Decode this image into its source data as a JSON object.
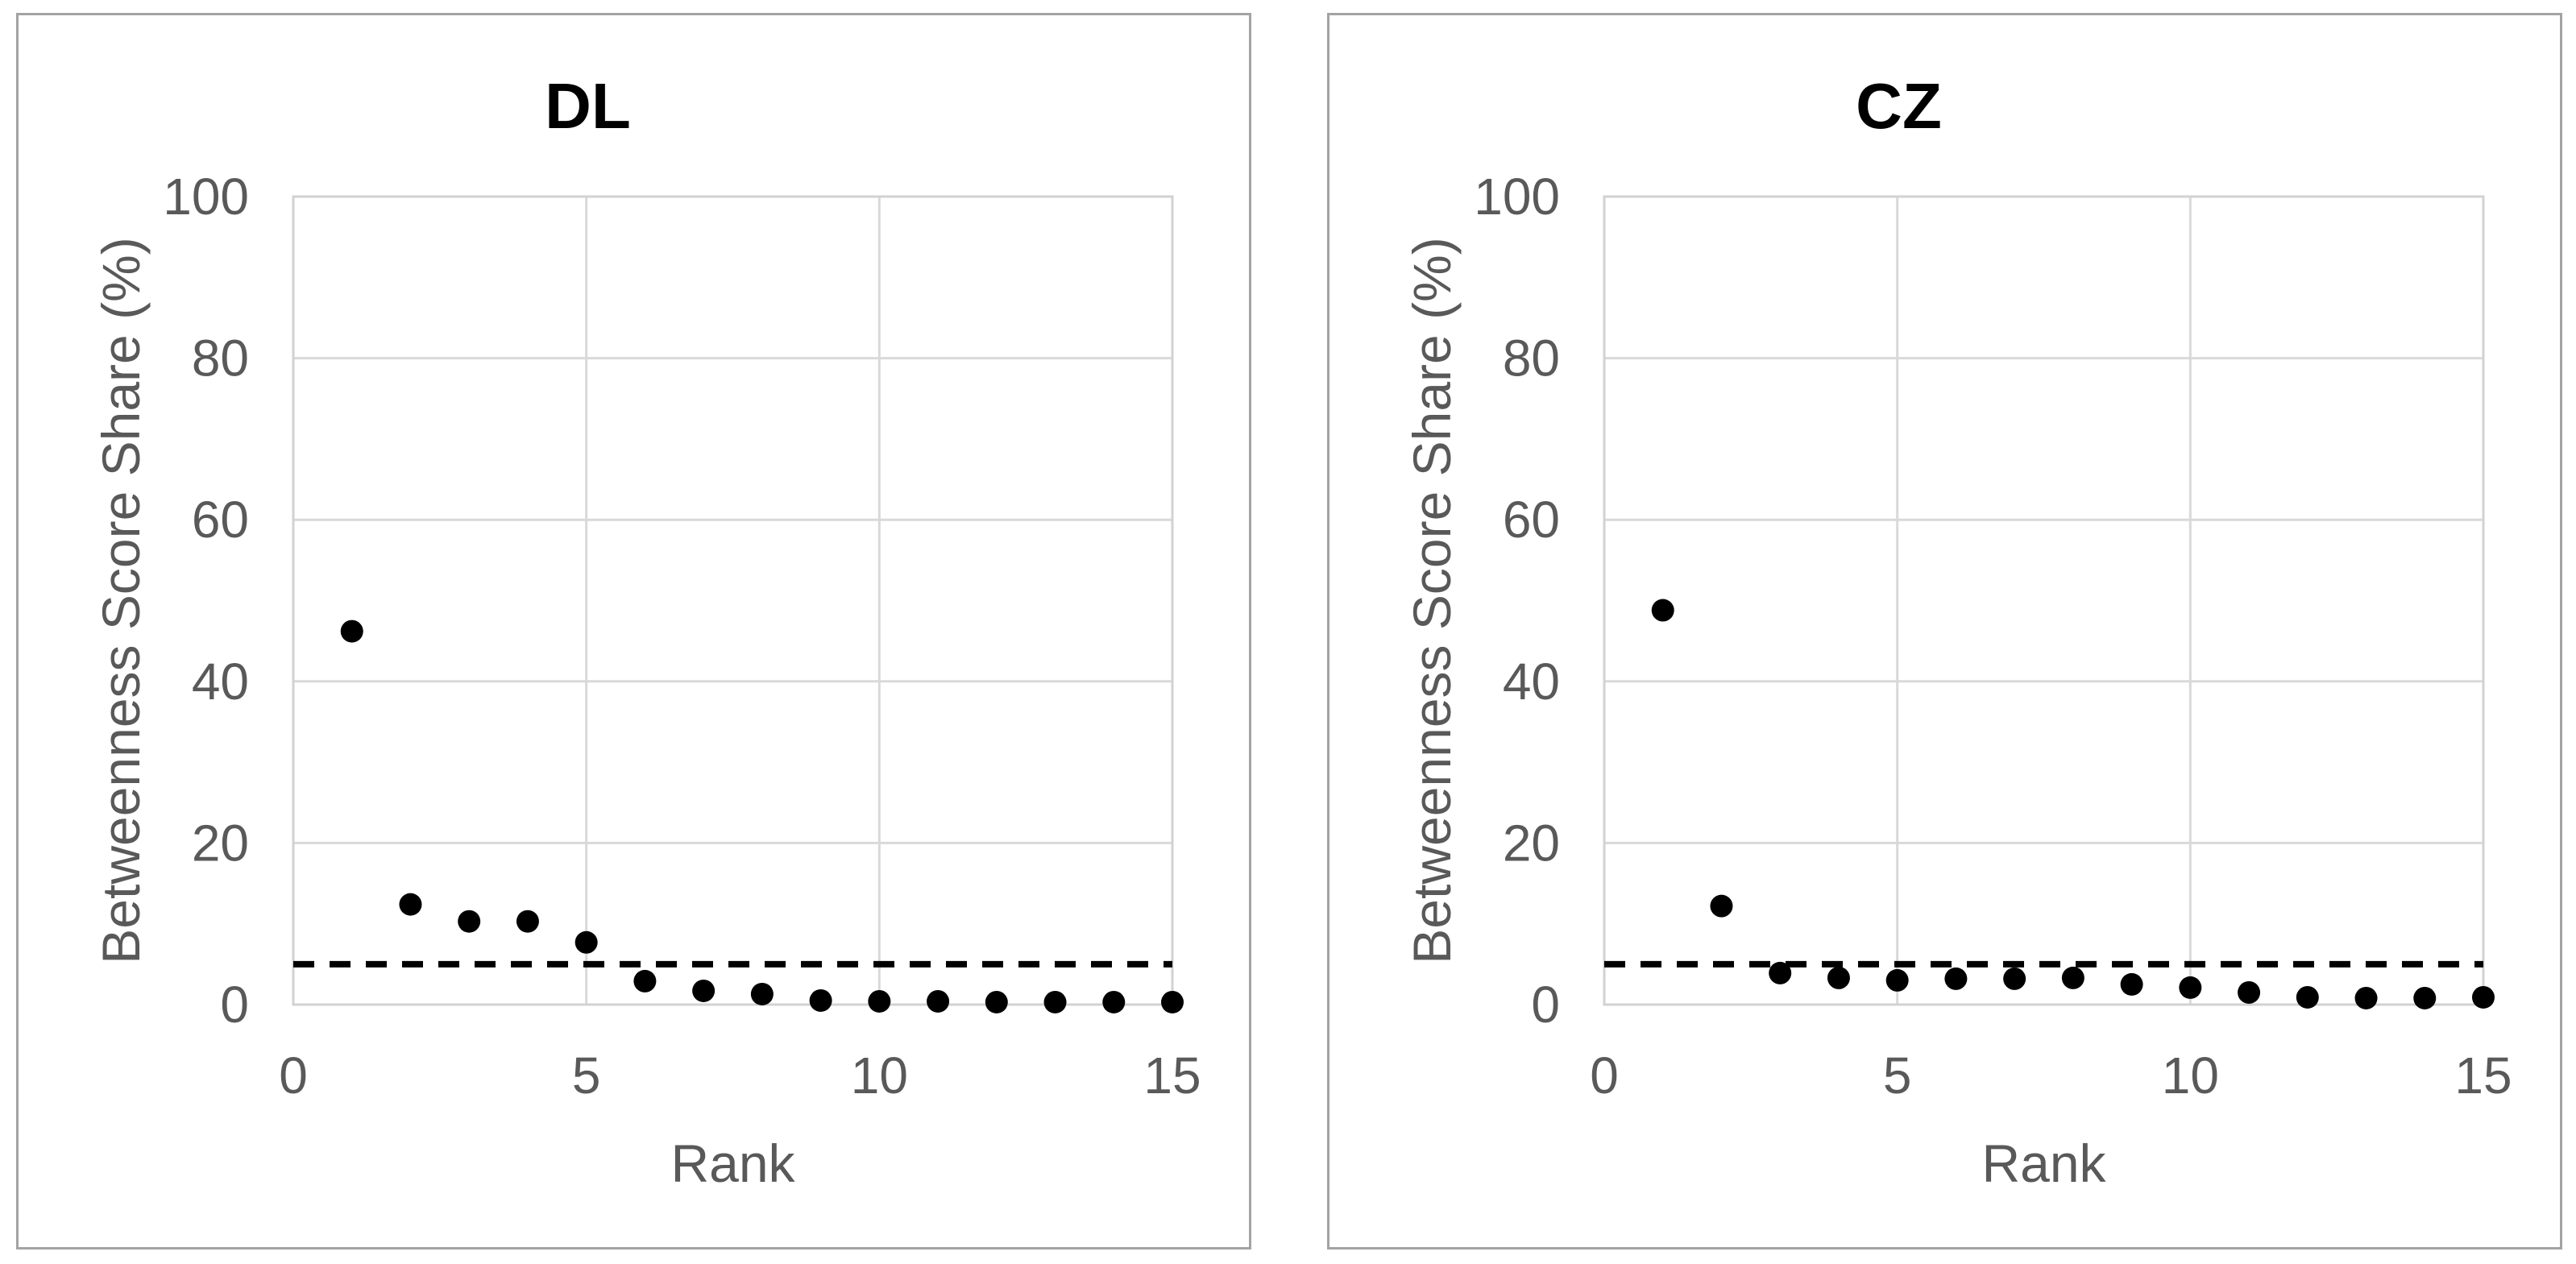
{
  "page": {
    "background_color": "#ffffff",
    "description": "Two side-by-side scatter charts comparing betweenness score share by rank"
  },
  "styles": {
    "title_color": "#000000",
    "axis_text_color": "#595959",
    "gridline_color": "#d9d9d9",
    "plot_border_color": "#d2d2d2",
    "chart_border_color": "#a3a3a3",
    "point_color": "#000000",
    "threshold_color": "#000000"
  },
  "chart_data": [
    {
      "type": "scatter",
      "title": "DL",
      "xlabel": "Rank",
      "ylabel": "Betweenness Score Share (%)",
      "xlim": [
        0,
        15
      ],
      "ylim": [
        0,
        100
      ],
      "x_ticks": [
        0,
        5,
        10,
        15
      ],
      "y_ticks": [
        0,
        20,
        40,
        60,
        80,
        100
      ],
      "grid": true,
      "legend": "none",
      "threshold_line": {
        "y": 5,
        "style": "dashed"
      },
      "x": [
        1,
        2,
        3,
        4,
        5,
        6,
        7,
        8,
        9,
        10,
        11,
        12,
        13,
        14,
        15
      ],
      "y": [
        46.2,
        12.4,
        10.3,
        10.3,
        7.7,
        2.9,
        1.7,
        1.3,
        0.5,
        0.4,
        0.4,
        0.3,
        0.3,
        0.3,
        0.3
      ]
    },
    {
      "type": "scatter",
      "title": "CZ",
      "xlabel": "Rank",
      "ylabel": "Betweenness Score Share (%)",
      "xlim": [
        0,
        15
      ],
      "ylim": [
        0,
        100
      ],
      "x_ticks": [
        0,
        5,
        10,
        15
      ],
      "y_ticks": [
        0,
        20,
        40,
        60,
        80,
        100
      ],
      "grid": true,
      "legend": "none",
      "threshold_line": {
        "y": 5,
        "style": "dashed"
      },
      "x": [
        1,
        2,
        3,
        4,
        5,
        6,
        7,
        8,
        9,
        10,
        11,
        12,
        13,
        14,
        15
      ],
      "y": [
        48.8,
        12.2,
        3.9,
        3.3,
        3.0,
        3.2,
        3.2,
        3.3,
        2.5,
        2.1,
        1.5,
        0.9,
        0.8,
        0.8,
        0.9
      ]
    }
  ]
}
